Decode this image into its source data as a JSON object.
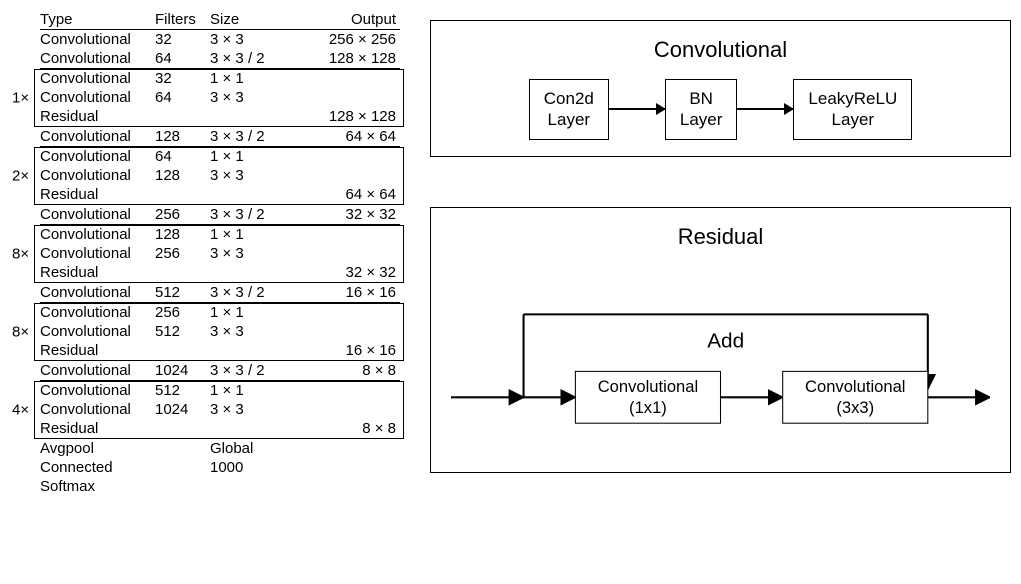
{
  "table": {
    "headers": [
      "Type",
      "Filters",
      "Size",
      "Output"
    ],
    "groups": [
      {
        "mult": null,
        "rows": [
          {
            "type": "Convolutional",
            "filters": "32",
            "size": "3 × 3",
            "output": "256 × 256"
          },
          {
            "type": "Convolutional",
            "filters": "64",
            "size": "3 × 3 / 2",
            "output": "128 × 128"
          }
        ]
      },
      {
        "mult": "1×",
        "rows": [
          {
            "type": "Convolutional",
            "filters": "32",
            "size": "1 × 1",
            "output": ""
          },
          {
            "type": "Convolutional",
            "filters": "64",
            "size": "3 × 3",
            "output": ""
          },
          {
            "type": "Residual",
            "filters": "",
            "size": "",
            "output": "128 × 128"
          }
        ]
      },
      {
        "mult": null,
        "rows": [
          {
            "type": "Convolutional",
            "filters": "128",
            "size": "3 × 3 / 2",
            "output": "64 × 64"
          }
        ]
      },
      {
        "mult": "2×",
        "rows": [
          {
            "type": "Convolutional",
            "filters": "64",
            "size": "1 × 1",
            "output": ""
          },
          {
            "type": "Convolutional",
            "filters": "128",
            "size": "3 × 3",
            "output": ""
          },
          {
            "type": "Residual",
            "filters": "",
            "size": "",
            "output": "64 × 64"
          }
        ]
      },
      {
        "mult": null,
        "rows": [
          {
            "type": "Convolutional",
            "filters": "256",
            "size": "3 × 3 / 2",
            "output": "32 × 32"
          }
        ]
      },
      {
        "mult": "8×",
        "rows": [
          {
            "type": "Convolutional",
            "filters": "128",
            "size": "1 × 1",
            "output": ""
          },
          {
            "type": "Convolutional",
            "filters": "256",
            "size": "3 × 3",
            "output": ""
          },
          {
            "type": "Residual",
            "filters": "",
            "size": "",
            "output": "32 × 32"
          }
        ]
      },
      {
        "mult": null,
        "rows": [
          {
            "type": "Convolutional",
            "filters": "512",
            "size": "3 × 3 / 2",
            "output": "16 × 16"
          }
        ]
      },
      {
        "mult": "8×",
        "rows": [
          {
            "type": "Convolutional",
            "filters": "256",
            "size": "1 × 1",
            "output": ""
          },
          {
            "type": "Convolutional",
            "filters": "512",
            "size": "3 × 3",
            "output": ""
          },
          {
            "type": "Residual",
            "filters": "",
            "size": "",
            "output": "16 × 16"
          }
        ]
      },
      {
        "mult": null,
        "rows": [
          {
            "type": "Convolutional",
            "filters": "1024",
            "size": "3 × 3 / 2",
            "output": "8 × 8"
          }
        ]
      },
      {
        "mult": "4×",
        "rows": [
          {
            "type": "Convolutional",
            "filters": "512",
            "size": "1 × 1",
            "output": ""
          },
          {
            "type": "Convolutional",
            "filters": "1024",
            "size": "3 × 3",
            "output": ""
          },
          {
            "type": "Residual",
            "filters": "",
            "size": "",
            "output": "8 × 8"
          }
        ]
      },
      {
        "mult": null,
        "rows": [
          {
            "type": "Avgpool",
            "filters": "",
            "size": "Global",
            "output": ""
          },
          {
            "type": "Connected",
            "filters": "",
            "size": "1000",
            "output": ""
          },
          {
            "type": "Softmax",
            "filters": "",
            "size": "",
            "output": ""
          }
        ]
      }
    ]
  },
  "conv_diagram": {
    "title": "Convolutional",
    "nodes": [
      "Con2d\nLayer",
      "BN\nLayer",
      "LeakyReLU\nLayer"
    ]
  },
  "residual_diagram": {
    "title": "Residual",
    "add_label": "Add",
    "nodes": [
      "Convolutional\n(1x1)",
      "Convolutional\n(3x3)"
    ]
  },
  "style": {
    "font_family": "Arial, Helvetica, sans-serif",
    "line_color": "#000000",
    "bg": "#ffffff",
    "title_fontsize": 22,
    "node_fontsize": 17,
    "table_fontsize": 15
  }
}
